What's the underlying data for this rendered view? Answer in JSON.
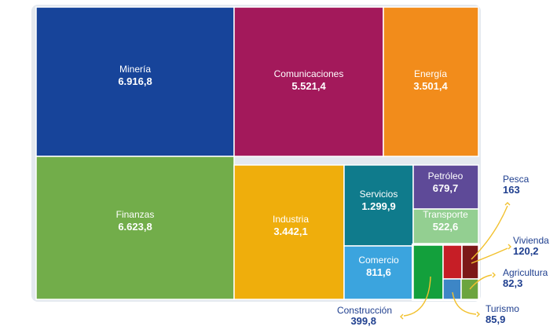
{
  "chart_data": {
    "type": "treemap",
    "title": "",
    "items": [
      {
        "name": "Minería",
        "value_label": "6.916,8",
        "value": 6916.8,
        "color": "#17449a"
      },
      {
        "name": "Comunicaciones",
        "value_label": "5.521,4",
        "value": 5521.4,
        "color": "#a3195b"
      },
      {
        "name": "Energía",
        "value_label": "3.501,4",
        "value": 3501.4,
        "color": "#f28c1b"
      },
      {
        "name": "Finanzas",
        "value_label": "6.623,8",
        "value": 6623.8,
        "color": "#72ad4a"
      },
      {
        "name": "Industria",
        "value_label": "3.442,1",
        "value": 3442.1,
        "color": "#efae0c"
      },
      {
        "name": "Servicios",
        "value_label": "1.299,9",
        "value": 1299.9,
        "color": "#0f7b8c"
      },
      {
        "name": "Petróleo",
        "value_label": "679,7",
        "value": 679.7,
        "color": "#5e4a98"
      },
      {
        "name": "Transporte",
        "value_label": "522,6",
        "value": 522.6,
        "color": "#93cf91"
      },
      {
        "name": "Comercio",
        "value_label": "811,6",
        "value": 811.6,
        "color": "#3ba4de"
      },
      {
        "name": "Construcción",
        "value_label": "399,8",
        "value": 399.8,
        "color": "#13a03c"
      },
      {
        "name": "Pesca",
        "value_label": "163",
        "value": 163,
        "color": "#c61e26"
      },
      {
        "name": "Vivienda",
        "value_label": "120,2",
        "value": 120.2,
        "color": "#7c1818"
      },
      {
        "name": "Turismo",
        "value_label": "85,9",
        "value": 85.9,
        "color": "#3d86c6"
      },
      {
        "name": "Agricultura",
        "value_label": "82,3",
        "value": 82.3,
        "color": "#6ca53e"
      }
    ]
  }
}
